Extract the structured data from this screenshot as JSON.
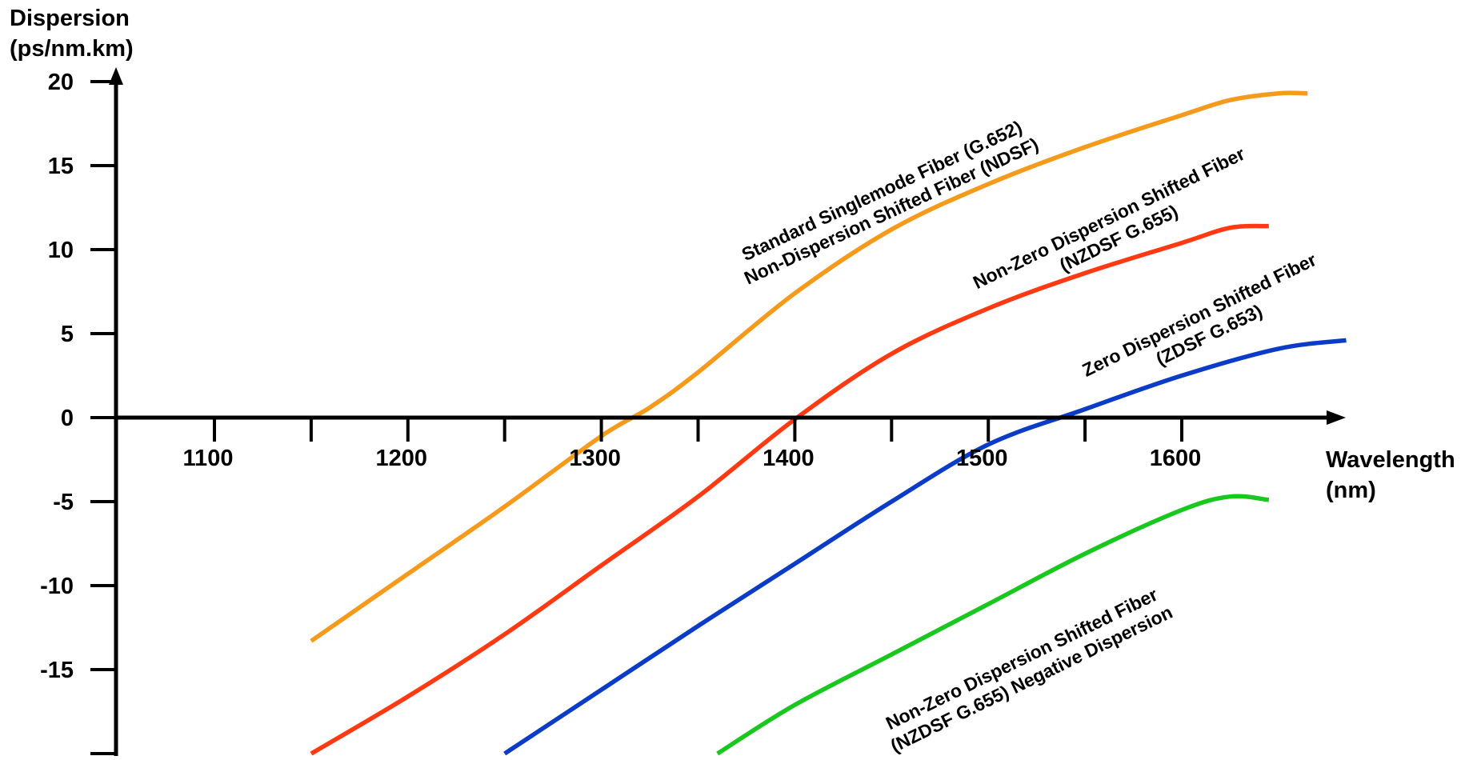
{
  "chart_data": {
    "type": "line",
    "title": "",
    "ylabel_lines": [
      "Dispersion",
      "(ps/nm.km)"
    ],
    "xlabel_lines": [
      "Wavelength",
      "(nm)"
    ],
    "x_tick_labels": [
      "1100",
      "1200",
      "1300",
      "1400",
      "1500",
      "1600"
    ],
    "y_tick_labels": [
      "20",
      "15",
      "10",
      "5",
      "0",
      "-5",
      "-10",
      "-15"
    ],
    "xlim": [
      1050,
      1720
    ],
    "ylim": [
      -20,
      22
    ],
    "series": [
      {
        "name": "Standard Singlemode Fiber (G.652) Non-Dispersion Shifted Fiber (NDSF)",
        "color": "#f59a1a",
        "label_lines": [
          "Standard Singlemode Fiber (G.652)",
          "Non-Dispersion Shifted Fiber (NDSF)"
        ],
        "x": [
          1150,
          1200,
          1250,
          1300,
          1325,
          1350,
          1400,
          1450,
          1500,
          1550,
          1600,
          1625,
          1650,
          1665
        ],
        "y": [
          -13.3,
          -9.3,
          -5.3,
          -1.1,
          0.6,
          2.7,
          7.4,
          11.2,
          13.9,
          16.1,
          18.0,
          18.9,
          19.3,
          19.3
        ]
      },
      {
        "name": "Non-Zero Dispersion Shifted Fiber (NZDSF G.655)",
        "color": "#ff3a12",
        "label_lines": [
          "Non-Zero Dispersion Shifted Fiber",
          "(NZDSF G.655)"
        ],
        "x": [
          1150,
          1200,
          1250,
          1300,
          1350,
          1400,
          1450,
          1500,
          1550,
          1600,
          1625,
          1645
        ],
        "y": [
          -20.0,
          -16.6,
          -12.9,
          -8.8,
          -4.7,
          -0.1,
          3.8,
          6.5,
          8.6,
          10.4,
          11.3,
          11.4
        ]
      },
      {
        "name": "Zero Dispersion Shifted Fiber (ZDSF G.653)",
        "color": "#0a3cc8",
        "label_lines": [
          "Zero Dispersion Shifted Fiber",
          "(ZDSF G.653)"
        ],
        "x": [
          1250,
          1300,
          1350,
          1400,
          1450,
          1500,
          1550,
          1600,
          1650,
          1685
        ],
        "y": [
          -20.0,
          -16.2,
          -12.4,
          -8.7,
          -5.0,
          -1.6,
          0.5,
          2.5,
          4.1,
          4.6
        ]
      },
      {
        "name": "Non-Zero Dispersion Shifted Fiber (NZDSF G.655) Negative Dispersion",
        "color": "#18c81e",
        "label_lines": [
          "Non-Zero Dispersion Shifted Fiber",
          "(NZDSF G.655) Negative Dispersion"
        ],
        "x": [
          1360,
          1400,
          1450,
          1500,
          1550,
          1600,
          1625,
          1645
        ],
        "y": [
          -20.0,
          -17.1,
          -14.1,
          -11.1,
          -8.1,
          -5.5,
          -4.7,
          -4.9
        ]
      }
    ],
    "grid": false,
    "legend": "none"
  }
}
